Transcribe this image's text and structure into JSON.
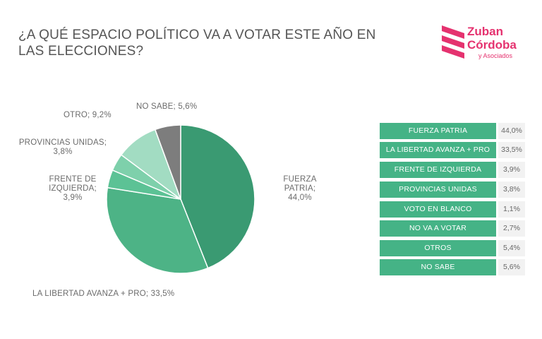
{
  "title": "¿A QUÉ ESPACIO POLÍTICO VA A VOTAR ESTE AÑO EN LAS ELECCIONES?",
  "logo": {
    "line1": "Zuban",
    "line2": "Córdoba",
    "line3": "y Asociados",
    "color": "#e5326f"
  },
  "chart_data": {
    "type": "pie",
    "title": "¿A QUÉ ESPACIO POLÍTICO VA A VOTAR ESTE AÑO EN LAS ELECCIONES?",
    "slices": [
      {
        "label": "FUERZA PATRIA",
        "value": 44.0,
        "display": "FUERZA PATRIA; 44,0%",
        "color": "#3a9a72"
      },
      {
        "label": "LA LIBERTAD AVANZA + PRO",
        "value": 33.5,
        "display": "LA LIBERTAD AVANZA + PRO; 33,5%",
        "color": "#4db386"
      },
      {
        "label": "FRENTE DE IZQUIERDA",
        "value": 3.9,
        "display": "FRENTE DE IZQUIERDA; 3,9%",
        "color": "#5cc295"
      },
      {
        "label": "PROVINCIAS UNIDAS",
        "value": 3.8,
        "display": "PROVINCIAS UNIDAS; 3,8%",
        "color": "#7ed0ab"
      },
      {
        "label": "OTRO",
        "value": 9.2,
        "display": "OTRO; 9,2%",
        "color": "#a2dcc2"
      },
      {
        "label": "NO SABE",
        "value": 5.6,
        "display": "NO SABE; 5,6%",
        "color": "#7d7d7d"
      }
    ]
  },
  "table": [
    {
      "name": "FUERZA PATRIA",
      "value": "44,0%"
    },
    {
      "name": "LA LIBERTAD AVANZA + PRO",
      "value": "33,5%"
    },
    {
      "name": "FRENTE DE IZQUIERDA",
      "value": "3,9%"
    },
    {
      "name": "PROVINCIAS UNIDAS",
      "value": "3,8%"
    },
    {
      "name": "VOTO EN BLANCO",
      "value": "1,1%"
    },
    {
      "name": "NO VA A VOTAR",
      "value": "2,7%"
    },
    {
      "name": "OTROS",
      "value": "5,4%"
    },
    {
      "name": "NO SABE",
      "value": "5,6%"
    }
  ]
}
